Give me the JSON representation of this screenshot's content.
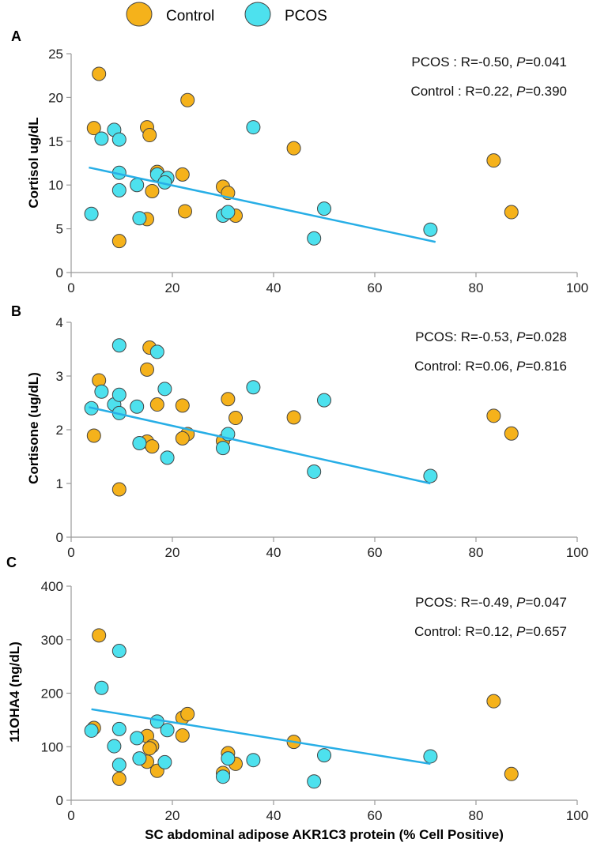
{
  "legend": [
    {
      "label": "Control",
      "color": "#F5B21B"
    },
    {
      "label": "PCOS",
      "color": "#4DE1EE"
    }
  ],
  "colors": {
    "control": "#F5B21B",
    "pcos": "#4DE1EE",
    "fit": "#27AEE6",
    "marker_edge": "#444444",
    "axis": "#9a9a9a"
  },
  "xlabel": "SC abdominal adipose AKR1C3 protein (% Cell Positive)",
  "chart_data": [
    {
      "type": "scatter",
      "panel_label": "A",
      "ylabel": "Cortisol ug/dL",
      "xlim": [
        0,
        100
      ],
      "ylim": [
        0,
        25
      ],
      "xticks": [
        0,
        20,
        40,
        60,
        80,
        100
      ],
      "yticks": [
        0,
        5,
        10,
        15,
        20,
        25
      ],
      "annotations": [
        {
          "group": "PCOS :",
          "r": "R=-0.50,",
          "p_sym": "P",
          "p_val": "=0.041"
        },
        {
          "group": "Control :",
          "r": "R=0.22,",
          "p_sym": "P",
          "p_val": "=0.390"
        }
      ],
      "series": [
        {
          "name": "Control",
          "points": [
            [
              5.5,
              22.7
            ],
            [
              4.5,
              16.5
            ],
            [
              15,
              16.6
            ],
            [
              15.5,
              15.7
            ],
            [
              23,
              19.7
            ],
            [
              44,
              14.2
            ],
            [
              83.5,
              12.8
            ],
            [
              17,
              11.5
            ],
            [
              22,
              11.2
            ],
            [
              16,
              9.3
            ],
            [
              30,
              9.8
            ],
            [
              31,
              9.1
            ],
            [
              22.5,
              7.0
            ],
            [
              32.5,
              6.5
            ],
            [
              15,
              6.1
            ],
            [
              9.5,
              3.6
            ],
            [
              87,
              6.9
            ]
          ]
        },
        {
          "name": "PCOS",
          "points": [
            [
              8.5,
              16.3
            ],
            [
              6,
              15.3
            ],
            [
              9.5,
              15.2
            ],
            [
              36,
              16.6
            ],
            [
              17,
              11.2
            ],
            [
              19,
              10.8
            ],
            [
              9.5,
              11.4
            ],
            [
              13,
              10.0
            ],
            [
              18.5,
              10.3
            ],
            [
              9.5,
              9.4
            ],
            [
              4,
              6.7
            ],
            [
              13.5,
              6.2
            ],
            [
              30,
              6.5
            ],
            [
              31,
              6.9
            ],
            [
              50,
              7.3
            ],
            [
              48,
              3.9
            ],
            [
              71,
              4.9
            ]
          ]
        }
      ],
      "fit": {
        "x": [
          3.5,
          72
        ],
        "y": [
          12.0,
          3.5
        ]
      }
    },
    {
      "type": "scatter",
      "panel_label": "B",
      "ylabel": "Cortisone (ug/dL)",
      "xlim": [
        0,
        100
      ],
      "ylim": [
        0,
        4
      ],
      "xticks": [
        0,
        20,
        40,
        60,
        80,
        100
      ],
      "yticks": [
        0,
        1,
        2,
        3,
        4
      ],
      "annotations": [
        {
          "group": "PCOS:",
          "r": "R=-0.53,",
          "p_sym": "P",
          "p_val": "=0.028"
        },
        {
          "group": "Control:",
          "r": "R=0.06,",
          "p_sym": "P",
          "p_val": "=0.816"
        }
      ],
      "series": [
        {
          "name": "Control",
          "points": [
            [
              5.5,
              2.92
            ],
            [
              15.5,
              3.53
            ],
            [
              15,
              3.12
            ],
            [
              17,
              2.47
            ],
            [
              22,
              2.45
            ],
            [
              31,
              2.57
            ],
            [
              32.5,
              2.22
            ],
            [
              44,
              2.23
            ],
            [
              83.5,
              2.26
            ],
            [
              87,
              1.93
            ],
            [
              4.5,
              1.89
            ],
            [
              23,
              1.92
            ],
            [
              22,
              1.84
            ],
            [
              15,
              1.78
            ],
            [
              16,
              1.69
            ],
            [
              30,
              1.79
            ],
            [
              9.5,
              0.89
            ]
          ]
        },
        {
          "name": "PCOS",
          "points": [
            [
              9.5,
              3.57
            ],
            [
              17,
              3.45
            ],
            [
              6,
              2.71
            ],
            [
              8.5,
              2.47
            ],
            [
              9.5,
              2.65
            ],
            [
              4,
              2.4
            ],
            [
              9.5,
              2.31
            ],
            [
              13,
              2.43
            ],
            [
              18.5,
              2.76
            ],
            [
              36,
              2.79
            ],
            [
              50,
              2.55
            ],
            [
              13.5,
              1.75
            ],
            [
              19,
              1.48
            ],
            [
              30,
              1.66
            ],
            [
              31,
              1.92
            ],
            [
              48,
              1.22
            ],
            [
              71,
              1.14
            ]
          ]
        }
      ],
      "fit": {
        "x": [
          3.5,
          71
        ],
        "y": [
          2.42,
          1.0
        ]
      }
    },
    {
      "type": "scatter",
      "panel_label": "C",
      "ylabel": "11OHA4 (ng/dL)",
      "xlim": [
        0,
        100
      ],
      "ylim": [
        0,
        400
      ],
      "xticks": [
        0,
        20,
        40,
        60,
        80,
        100
      ],
      "yticks": [
        0,
        100,
        200,
        300,
        400
      ],
      "annotations": [
        {
          "group": "PCOS:",
          "r": "R=-0.49,",
          "p_sym": "P",
          "p_val": "=0.047"
        },
        {
          "group": "Control:",
          "r": "R=0.12,",
          "p_sym": "P",
          "p_val": "=0.657"
        }
      ],
      "series": [
        {
          "name": "Control",
          "points": [
            [
              5.5,
              308
            ],
            [
              4.5,
              135
            ],
            [
              22,
              154
            ],
            [
              23,
              161
            ],
            [
              83.5,
              185
            ],
            [
              15,
              120
            ],
            [
              16,
              101
            ],
            [
              15.5,
              97
            ],
            [
              22,
              121
            ],
            [
              44,
              109
            ],
            [
              31,
              88
            ],
            [
              32.5,
              68
            ],
            [
              30,
              51
            ],
            [
              15,
              72
            ],
            [
              17,
              55
            ],
            [
              9.5,
              40
            ],
            [
              87,
              49
            ]
          ]
        },
        {
          "name": "PCOS",
          "points": [
            [
              9.5,
              279
            ],
            [
              6,
              210
            ],
            [
              4,
              130
            ],
            [
              9.5,
              133
            ],
            [
              17,
              147
            ],
            [
              19,
              131
            ],
            [
              13,
              116
            ],
            [
              8.5,
              101
            ],
            [
              13.5,
              78
            ],
            [
              9.5,
              66
            ],
            [
              18.5,
              71
            ],
            [
              30,
              44
            ],
            [
              31,
              78
            ],
            [
              36,
              75
            ],
            [
              50,
              84
            ],
            [
              48,
              35
            ],
            [
              71,
              82
            ]
          ]
        }
      ],
      "fit": {
        "x": [
          4,
          71
        ],
        "y": [
          170,
          68
        ]
      }
    }
  ]
}
